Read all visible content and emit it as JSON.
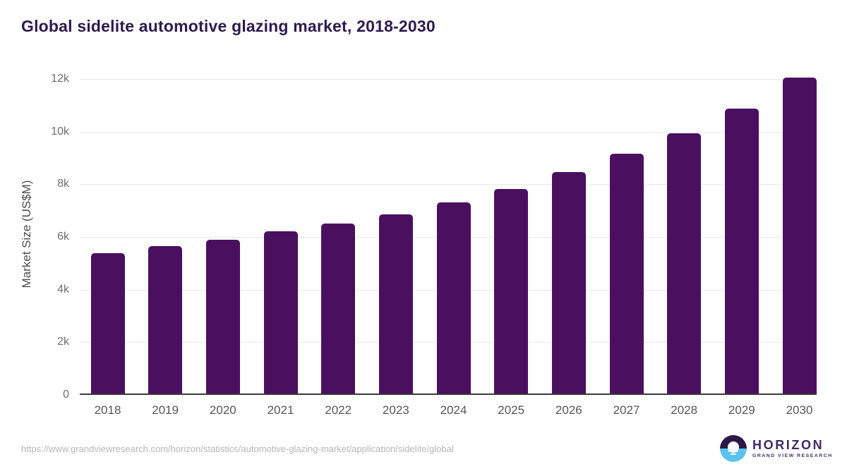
{
  "header": {
    "title": "Global sidelite automotive glazing market, 2018-2030"
  },
  "footer": {
    "source_url": "https://www.grandviewresearch.com/horizon/statistics/automotive-glazing-market/application/sidelite/global",
    "logo_name": "HORIZON",
    "logo_subtitle": "GRAND VIEW RESEARCH"
  },
  "colors": {
    "bar": "#4a105f",
    "title_text": "#2f1a4d",
    "gridline": "#e8e8e8",
    "axis_line": "#3a3a3a",
    "tick_text": "#6e6e6e",
    "logo_navy": "#2d1947",
    "logo_blue": "#5cc3ef"
  },
  "chart_data": {
    "type": "bar",
    "title": "Global sidelite automotive glazing market, 2018-2030",
    "categories": [
      "2018",
      "2019",
      "2020",
      "2021",
      "2022",
      "2023",
      "2024",
      "2025",
      "2026",
      "2027",
      "2028",
      "2029",
      "2030"
    ],
    "values": [
      5360,
      5620,
      5870,
      6190,
      6480,
      6840,
      7290,
      7800,
      8450,
      9130,
      9900,
      10860,
      12040
    ],
    "series_name": "Market Size",
    "xlabel": "",
    "ylabel": "Market Size (US$M)",
    "ylim": [
      0,
      12000
    ],
    "ytick_values": [
      0,
      2000,
      4000,
      6000,
      8000,
      10000,
      12000
    ],
    "ytick_labels": [
      "0",
      "2k",
      "4k",
      "6k",
      "8k",
      "10k",
      "12k"
    ],
    "grid": true,
    "legend": "none"
  }
}
